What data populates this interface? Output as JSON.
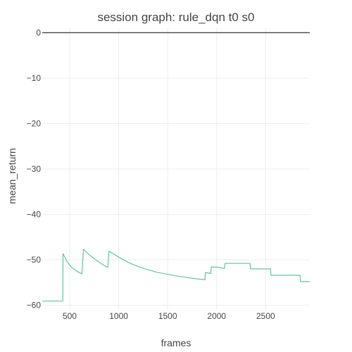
{
  "chart_data": {
    "type": "line",
    "title": "session graph: rule_dqn t0 s0",
    "xlabel": "frames",
    "ylabel": "mean_return",
    "xlim": [
      220,
      2950
    ],
    "ylim": [
      -61,
      1
    ],
    "grid": true,
    "legend": "none",
    "x_ticks": [
      500,
      1000,
      1500,
      2000,
      2500
    ],
    "y_ticks": [
      0,
      -10,
      -20,
      -30,
      -40,
      -50,
      -60
    ],
    "x_tick_labels": [
      "500",
      "1000",
      "1500",
      "2000",
      "2500"
    ],
    "y_tick_labels": [
      "0",
      "−10",
      "−20",
      "−30",
      "−40",
      "−50",
      "−60"
    ],
    "colors": {
      "series": "#66c2a5",
      "zero_line": "#444444",
      "grid": "#eeeeee",
      "text": "#444444"
    },
    "series": [
      {
        "x": [
          220,
          430,
          432,
          470,
          520,
          580,
          625,
          640,
          700,
          760,
          820,
          880,
          890,
          900,
          1000,
          1100,
          1200,
          1300,
          1400,
          1500,
          1600,
          1700,
          1800,
          1880,
          1885,
          1940,
          1945,
          2000,
          2080,
          2085,
          2150,
          2200,
          2340,
          2345,
          2400,
          2550,
          2555,
          2600,
          2700,
          2800,
          2850,
          2855,
          2900,
          2950
        ],
        "y": [
          -59.1,
          -59.1,
          -48.6,
          -50.3,
          -51.7,
          -52.6,
          -53.1,
          -47.7,
          -48.9,
          -49.9,
          -50.8,
          -51.6,
          -51.6,
          -48.1,
          -49.4,
          -50.6,
          -51.5,
          -52.2,
          -52.8,
          -53.2,
          -53.6,
          -53.9,
          -54.2,
          -54.4,
          -52.8,
          -53.0,
          -51.6,
          -51.6,
          -51.9,
          -50.8,
          -50.8,
          -50.8,
          -50.8,
          -52.0,
          -52.0,
          -52.0,
          -53.4,
          -53.4,
          -53.4,
          -53.4,
          -53.4,
          -54.8,
          -54.8,
          -54.8
        ]
      }
    ]
  }
}
